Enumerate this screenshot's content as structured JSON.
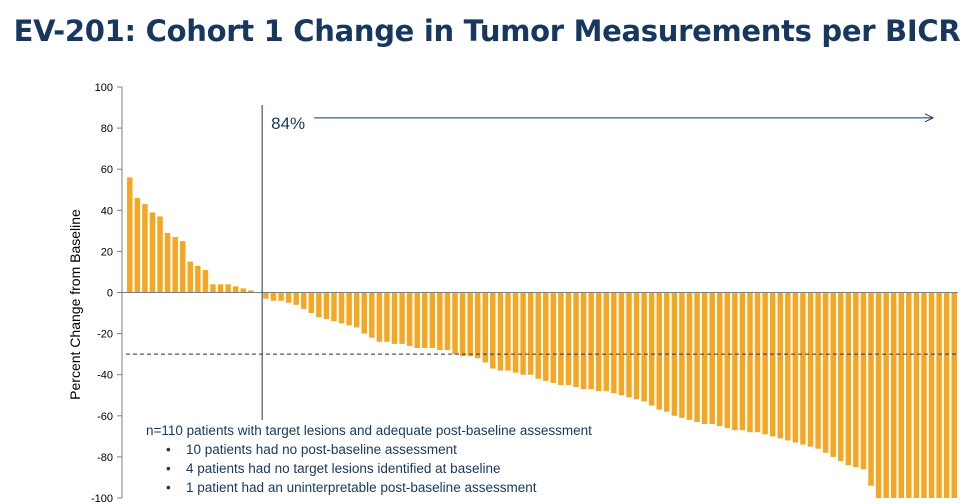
{
  "title": "EV-201: Cohort 1 Change in Tumor Measurements per BICR",
  "colors": {
    "bar": "#F5A623",
    "axis": "#7f7f7f",
    "title": "#17375e",
    "annotation": "#17375e",
    "text": "#000000"
  },
  "annotation": {
    "label": "84%",
    "marker": "vertical-line-and-right-arrow"
  },
  "notes": {
    "lead": "n=110 patients with target lesions and adequate post-baseline assessment",
    "bullets": [
      "10 patients had no post-baseline assessment",
      "4 patients had no target lesions identified at baseline",
      "1 patient had an uninterpretable post-baseline assessment"
    ]
  },
  "chart_data": {
    "type": "bar",
    "title": "EV-201: Cohort 1 Change in Tumor Measurements per BICR",
    "ylabel": "Percent Change from Baseline",
    "xlabel": "",
    "ylim": [
      -100,
      100
    ],
    "yticks": [
      100,
      80,
      60,
      40,
      20,
      0,
      -20,
      -40,
      -60,
      -80,
      -100
    ],
    "reference_lines": [
      {
        "y": -30,
        "style": "dashed"
      }
    ],
    "grid": false,
    "legend": "none",
    "series": [
      {
        "values": [
          56,
          46,
          43,
          39,
          37,
          29,
          27,
          25,
          15,
          13,
          11,
          4,
          4,
          4,
          3,
          2,
          1,
          0,
          -3,
          -4,
          -4,
          -5,
          -6,
          -8,
          -10,
          -12,
          -13,
          -14,
          -15,
          -16,
          -17,
          -20,
          -22,
          -24,
          -24,
          -25,
          -25,
          -26,
          -27,
          -27,
          -27,
          -28,
          -28,
          -30,
          -31,
          -31,
          -32,
          -34,
          -37,
          -38,
          -38,
          -39,
          -40,
          -40,
          -42,
          -43,
          -44,
          -45,
          -45,
          -46,
          -47,
          -47,
          -48,
          -48,
          -49,
          -50,
          -51,
          -52,
          -53,
          -55,
          -57,
          -58,
          -60,
          -61,
          -62,
          -63,
          -64,
          -64,
          -65,
          -66,
          -67,
          -67,
          -68,
          -68,
          -69,
          -70,
          -71,
          -72,
          -73,
          -74,
          -75,
          -76,
          -78,
          -80,
          -82,
          -84,
          -85,
          -86,
          -94,
          -100,
          -100,
          -100,
          -100,
          -100,
          -100,
          -100,
          -100,
          -100,
          -100,
          -100
        ]
      }
    ]
  }
}
